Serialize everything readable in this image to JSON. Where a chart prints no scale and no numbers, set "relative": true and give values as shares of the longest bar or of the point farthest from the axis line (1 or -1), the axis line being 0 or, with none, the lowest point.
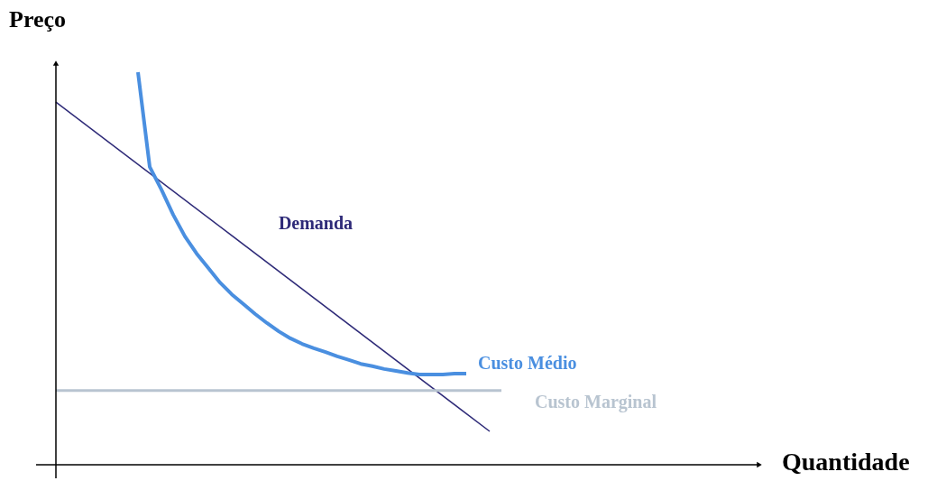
{
  "chart_data": {
    "type": "line",
    "xlabel": "Quantidade",
    "ylabel": "Preço",
    "relative": true,
    "line_style": "solid",
    "categories": [
      null,
      null,
      null,
      null,
      null,
      null,
      null,
      null,
      null,
      null,
      null,
      null,
      null,
      null,
      null,
      null,
      null,
      null,
      null,
      null,
      null,
      null,
      null,
      null,
      null,
      null,
      null,
      null,
      null,
      null,
      null,
      null,
      null,
      null,
      null,
      null,
      null,
      null,
      null,
      null,
      null,
      null,
      null,
      null,
      null,
      null,
      null,
      null,
      null,
      null,
      null,
      null,
      null,
      null,
      null,
      null,
      null,
      null,
      null,
      null
    ],
    "series": [
      {
        "name": "Demanda",
        "color": "#2e2a78",
        "values": [
          0.924,
          null,
          null,
          null,
          null,
          null,
          null,
          null,
          null,
          null,
          null,
          null,
          null,
          null,
          null,
          null,
          null,
          null,
          null,
          null,
          null,
          null,
          null,
          null,
          null,
          null,
          null,
          null,
          null,
          null,
          null,
          null,
          null,
          null,
          null,
          null,
          null,
          0.085,
          null,
          null,
          null,
          null,
          null,
          null,
          null,
          null,
          null,
          null,
          null,
          null,
          null,
          null,
          null,
          null,
          null,
          null,
          null,
          null,
          null,
          null
        ]
      },
      {
        "name": "Custo Médio",
        "color": "#4a8fe0",
        "values": [
          null,
          null,
          null,
          null,
          null,
          null,
          null,
          1.0,
          0.759,
          0.701,
          0.637,
          0.582,
          0.538,
          0.501,
          0.464,
          0.434,
          0.409,
          0.384,
          0.361,
          0.34,
          0.322,
          0.308,
          0.297,
          0.287,
          0.276,
          0.267,
          0.257,
          0.251,
          0.244,
          0.239,
          0.234,
          0.23,
          0.23,
          0.23,
          0.232,
          0.232,
          null,
          null,
          null,
          null,
          null,
          null,
          null,
          null,
          null,
          null,
          null,
          null,
          null,
          null,
          null,
          null,
          null,
          null,
          null,
          null,
          null,
          null,
          null,
          null
        ]
      },
      {
        "name": "Custo Marginal",
        "color": "#b8c4d0",
        "values": [
          0.189,
          null,
          null,
          null,
          null,
          null,
          null,
          null,
          null,
          null,
          null,
          null,
          null,
          null,
          null,
          null,
          null,
          null,
          null,
          null,
          null,
          null,
          null,
          null,
          null,
          null,
          null,
          null,
          null,
          null,
          null,
          null,
          null,
          null,
          null,
          null,
          null,
          null,
          0.189,
          null,
          null,
          null,
          null,
          null,
          null,
          null,
          null,
          null,
          null,
          null,
          null,
          null,
          null,
          null,
          null,
          null,
          null,
          null,
          null,
          null
        ]
      }
    ]
  }
}
